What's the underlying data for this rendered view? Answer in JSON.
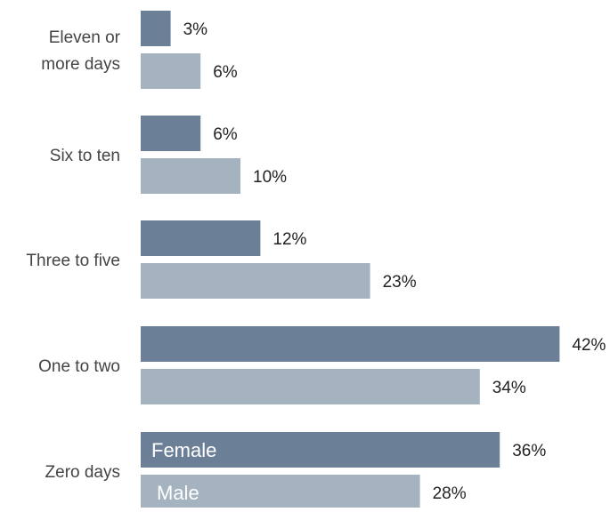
{
  "chart_data": {
    "type": "bar",
    "orientation": "horizontal",
    "categories": [
      "Eleven or more days",
      "Six to ten",
      "Three to five",
      "One to two",
      "Zero days"
    ],
    "category_label_lines": [
      [
        "Eleven or",
        "more days"
      ],
      [
        "Six to ten"
      ],
      [
        "Three to five"
      ],
      [
        "One to two"
      ],
      [
        "Zero days"
      ]
    ],
    "series": [
      {
        "name": "Female",
        "values": [
          3,
          6,
          12,
          42,
          36
        ],
        "labels": [
          "3%",
          "6%",
          "12%",
          "42%",
          "36%"
        ],
        "color": "#6b8096"
      },
      {
        "name": "Male",
        "values": [
          6,
          10,
          23,
          34,
          28
        ],
        "labels": [
          "6%",
          "10%",
          "23%",
          "34%",
          "28%"
        ],
        "color": "#a5b3c1"
      }
    ],
    "xlim": [
      0,
      42
    ],
    "grid": false,
    "legend": "in-bar labels on the Zero days bars",
    "title": "",
    "xlabel": "",
    "ylabel": ""
  }
}
